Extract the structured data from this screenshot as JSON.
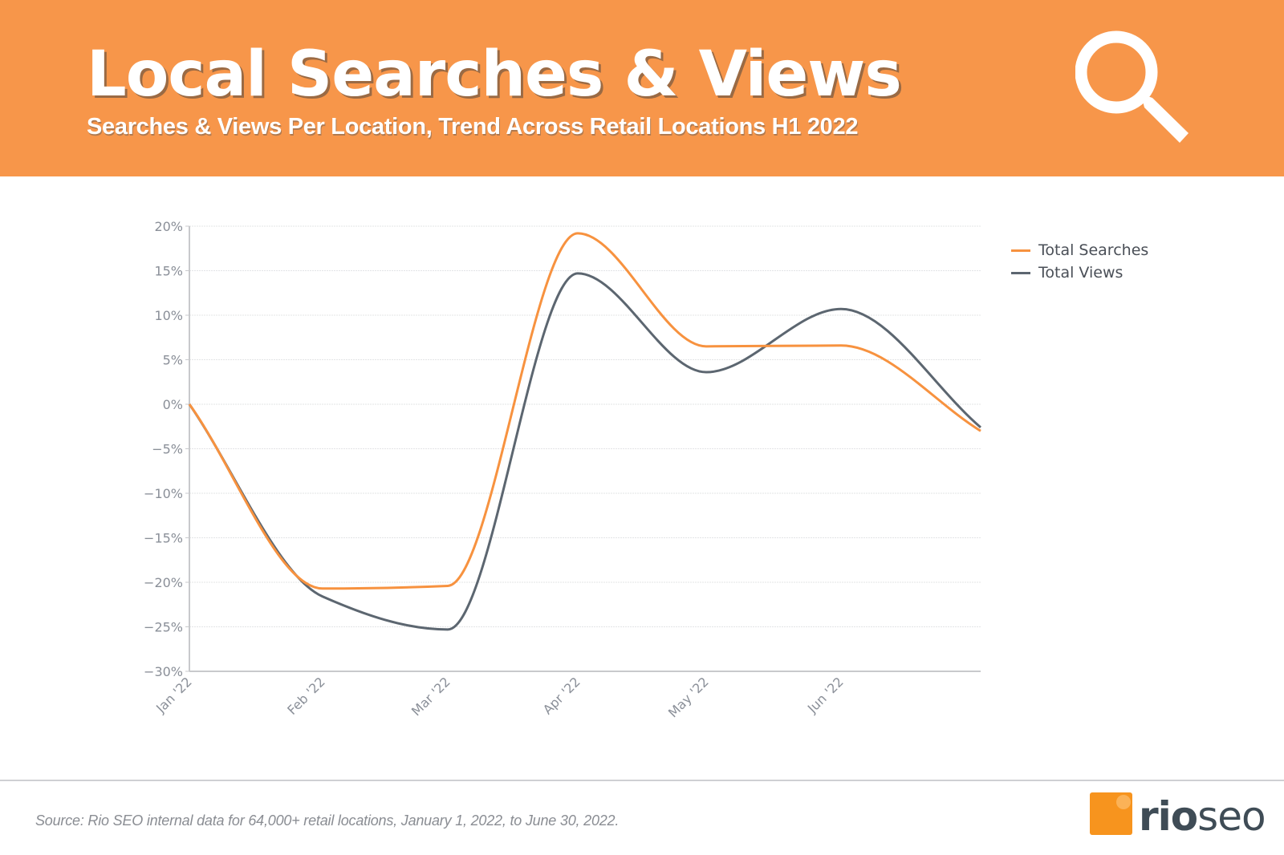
{
  "header": {
    "title": "Local Searches & Views",
    "subtitle": "Searches & Views Per Location, Trend Across Retail Locations H1 2022",
    "icon": "search-icon",
    "background_color": "#f7964a"
  },
  "legend": {
    "items": [
      {
        "label": "Total Searches",
        "color": "#f7923f"
      },
      {
        "label": "Total Views",
        "color": "#5c6670"
      }
    ]
  },
  "footer": {
    "source": "Source: Rio SEO internal data for 64,000+ retail locations, January 1, 2022, to June 30, 2022.",
    "logo_text_bold": "rio",
    "logo_text_light": "seo"
  },
  "chart_data": {
    "type": "line",
    "title": "Local Searches & Views",
    "subtitle": "Searches & Views Per Location, Trend Across Retail Locations H1 2022",
    "xlabel": "",
    "ylabel": "",
    "categories": [
      "Jan '22",
      "Feb '22",
      "Mar '22",
      "Apr '22",
      "May '22",
      "Jun '22",
      ""
    ],
    "x_tick_labels": [
      "Jan '22",
      "Feb '22",
      "Mar '22",
      "Apr '22",
      "May '22",
      "Jun '22"
    ],
    "y_tick_labels": [
      "20%",
      "15%",
      "10%",
      "5%",
      "0%",
      "−5%",
      "−10%",
      "−15%",
      "−20%",
      "−25%",
      "−30%"
    ],
    "ylim": [
      -30,
      20
    ],
    "y_unit": "%",
    "grid": true,
    "legend_position": "right",
    "smooth": true,
    "series": [
      {
        "name": "Total Searches",
        "color": "#f7923f",
        "values": [
          0,
          -20.7,
          -20.4,
          19.2,
          6.5,
          6.6,
          -3.0
        ]
      },
      {
        "name": "Total Views",
        "color": "#5c6670",
        "values": [
          0,
          -21.6,
          -25.3,
          14.7,
          3.6,
          10.7,
          -2.6
        ]
      }
    ]
  }
}
